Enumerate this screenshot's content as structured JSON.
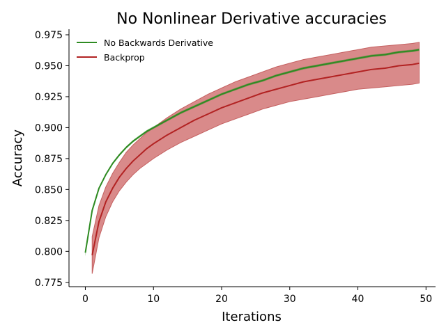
{
  "chart_data": {
    "type": "line",
    "title": "No Nonlinear Derivative accuracies",
    "xlabel": "Iterations",
    "ylabel": "Accuracy",
    "xlim": [
      -2.4,
      51.4
    ],
    "ylim": [
      0.7715,
      0.9795
    ],
    "xticks": [
      0,
      10,
      20,
      30,
      40,
      50
    ],
    "xtick_labels": [
      "0",
      "10",
      "20",
      "30",
      "40",
      "50"
    ],
    "yticks": [
      0.775,
      0.8,
      0.825,
      0.85,
      0.875,
      0.9,
      0.925,
      0.95,
      0.975
    ],
    "ytick_labels": [
      "0.775",
      "0.800",
      "0.825",
      "0.850",
      "0.875",
      "0.900",
      "0.925",
      "0.950",
      "0.975"
    ],
    "grid": false,
    "legend_position": "top-left",
    "series": [
      {
        "name": "No Backwards Derivative",
        "color": "#2e8b22",
        "x": [
          0,
          1,
          2,
          3,
          4,
          5,
          6,
          7,
          8,
          9,
          10,
          12,
          14,
          16,
          18,
          20,
          22,
          24,
          26,
          28,
          30,
          32,
          34,
          36,
          38,
          40,
          42,
          44,
          46,
          48,
          49
        ],
        "values": [
          0.799,
          0.833,
          0.851,
          0.862,
          0.871,
          0.878,
          0.884,
          0.889,
          0.893,
          0.897,
          0.9,
          0.906,
          0.912,
          0.917,
          0.922,
          0.927,
          0.931,
          0.935,
          0.938,
          0.942,
          0.945,
          0.948,
          0.95,
          0.952,
          0.954,
          0.956,
          0.958,
          0.959,
          0.961,
          0.962,
          0.963
        ],
        "band_lower": [
          0.796,
          0.831,
          0.85,
          0.861,
          0.87,
          0.877,
          0.883,
          0.888,
          0.892,
          0.896,
          0.899,
          0.905,
          0.911,
          0.916,
          0.921,
          0.926,
          0.93,
          0.934,
          0.937,
          0.941,
          0.944,
          0.947,
          0.949,
          0.951,
          0.953,
          0.955,
          0.957,
          0.958,
          0.96,
          0.961,
          0.962
        ],
        "band_upper": [
          0.802,
          0.835,
          0.852,
          0.863,
          0.872,
          0.879,
          0.885,
          0.89,
          0.894,
          0.898,
          0.901,
          0.907,
          0.913,
          0.918,
          0.923,
          0.928,
          0.932,
          0.936,
          0.939,
          0.943,
          0.946,
          0.949,
          0.951,
          0.953,
          0.955,
          0.957,
          0.959,
          0.96,
          0.962,
          0.963,
          0.964
        ]
      },
      {
        "name": "Backprop",
        "color": "#b22222",
        "band_color": "#d98a8a",
        "x": [
          1,
          2,
          3,
          4,
          5,
          6,
          7,
          8,
          9,
          10,
          12,
          14,
          16,
          18,
          20,
          22,
          24,
          26,
          28,
          30,
          32,
          34,
          36,
          38,
          40,
          42,
          44,
          46,
          48,
          49
        ],
        "values": [
          0.797,
          0.824,
          0.84,
          0.851,
          0.86,
          0.867,
          0.873,
          0.878,
          0.883,
          0.887,
          0.894,
          0.9,
          0.906,
          0.911,
          0.916,
          0.92,
          0.924,
          0.928,
          0.931,
          0.934,
          0.937,
          0.939,
          0.941,
          0.943,
          0.945,
          0.947,
          0.948,
          0.95,
          0.951,
          0.952
        ],
        "band_lower": [
          0.782,
          0.811,
          0.828,
          0.84,
          0.849,
          0.856,
          0.862,
          0.867,
          0.871,
          0.875,
          0.882,
          0.888,
          0.893,
          0.898,
          0.903,
          0.907,
          0.911,
          0.915,
          0.918,
          0.921,
          0.923,
          0.925,
          0.927,
          0.929,
          0.931,
          0.932,
          0.933,
          0.934,
          0.935,
          0.936
        ],
        "band_upper": [
          0.812,
          0.837,
          0.852,
          0.863,
          0.872,
          0.88,
          0.886,
          0.891,
          0.896,
          0.9,
          0.908,
          0.915,
          0.921,
          0.927,
          0.932,
          0.937,
          0.941,
          0.945,
          0.949,
          0.952,
          0.955,
          0.957,
          0.959,
          0.961,
          0.963,
          0.965,
          0.966,
          0.967,
          0.968,
          0.969
        ]
      }
    ]
  }
}
